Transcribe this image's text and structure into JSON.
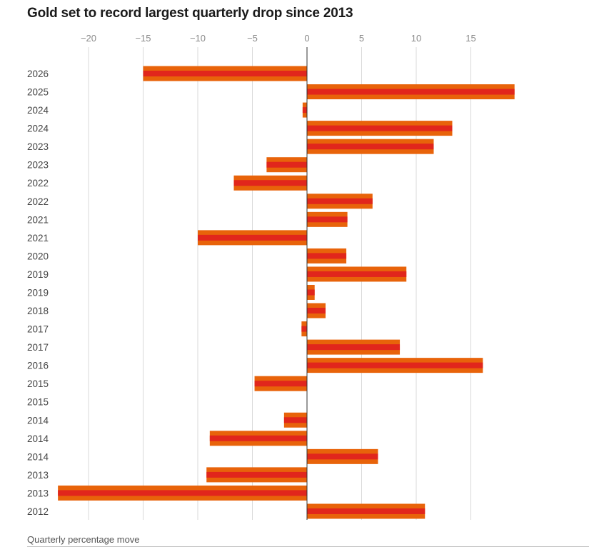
{
  "chart_data": {
    "type": "bar",
    "orientation": "horizontal",
    "title": "Gold set to record largest quarterly drop since 2013",
    "xlabel": "Quarterly percentage move",
    "ylabel": "",
    "xlim": [
      -23,
      19
    ],
    "xticks": [
      -20,
      -15,
      -10,
      -5,
      0,
      5,
      10,
      15
    ],
    "xtick_labels": [
      "−20",
      "−15",
      "−10",
      "−5",
      "0",
      "5",
      "10",
      "15"
    ],
    "categories": [
      "2026",
      "2025",
      "2024",
      "2024",
      "2023",
      "2023",
      "2022",
      "2022",
      "2021",
      "2021",
      "2020",
      "2019",
      "2019",
      "2018",
      "2017",
      "2017",
      "2016",
      "2015",
      "2015",
      "2014",
      "2014",
      "2014",
      "2013",
      "2013",
      "2012"
    ],
    "values": [
      -15.0,
      19.0,
      -0.4,
      13.3,
      11.6,
      -3.7,
      -6.7,
      6.0,
      3.7,
      -10.0,
      3.6,
      9.1,
      0.7,
      1.7,
      -0.5,
      8.5,
      16.1,
      -4.8,
      0.0,
      -2.1,
      -8.9,
      6.5,
      -9.2,
      -22.8,
      10.8
    ],
    "grid": true,
    "colors": {
      "bar_outer": "#e8630a",
      "bar_inner": "#e1261c",
      "grid": "#d9d9d9",
      "zero_line": "#333333"
    }
  }
}
